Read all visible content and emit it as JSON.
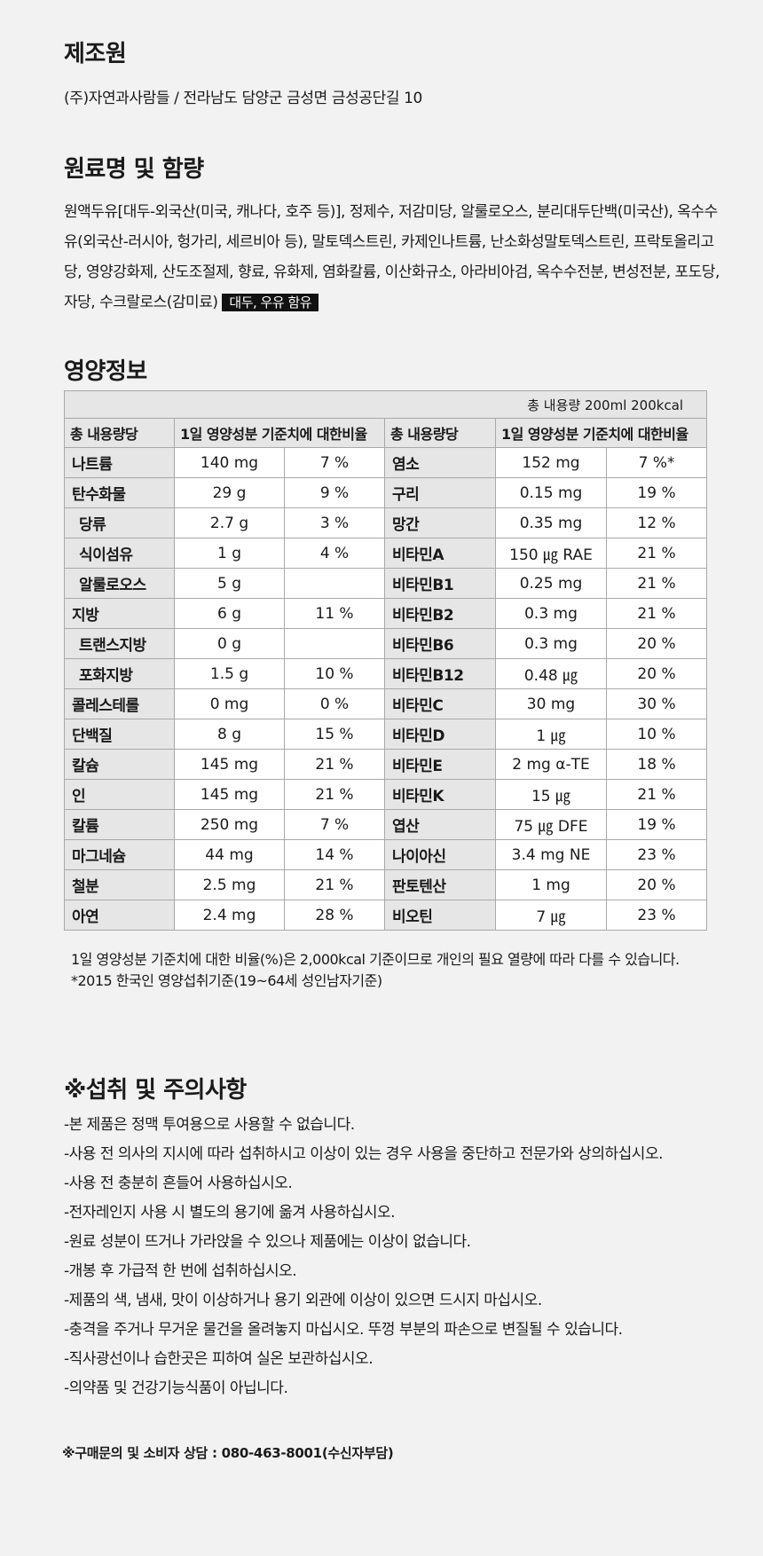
{
  "manufacturer": {
    "title": "제조원",
    "text": "(주)자연과사람들 / 전라남도 담양군 금성면 금성공단길 10"
  },
  "ingredients": {
    "title": "원료명 및 함량",
    "text": "원액두유[대두-외국산(미국, 캐나다, 호주 등)], 정제수, 저감미당, 알룰로오스, 분리대두단백(미국산), 옥수수유(외국산-러시아, 헝가리, 세르비아 등), 말토덱스트린, 카제인나트륨, 난소화성말토덱스트린, 프락토올리고당, 영양강화제, 산도조절제, 향료, 유화제, 염화칼륨, 이산화규소, 아라비아검, 옥수수전분, 변성전분, 포도당, 자당, 수크랄로스(감미료)",
    "allergen": "대두, 우유 함유"
  },
  "nutrition": {
    "title": "영양정보",
    "total": "총 내용량 200ml 200kcal",
    "header_amount": "총 내용량당",
    "header_ratio": "1일 영양성분 기준치에 대한비율",
    "left": [
      {
        "name": "나트륨",
        "value": "140 mg",
        "pct": "7 %"
      },
      {
        "name": "탄수화물",
        "value": "29 g",
        "pct": "9 %"
      },
      {
        "name": "당류",
        "value": "2.7 g",
        "pct": "3 %"
      },
      {
        "name": "식이섬유",
        "value": "1 g",
        "pct": "4 %"
      },
      {
        "name": "알룰로오스",
        "value": "5 g",
        "pct": ""
      },
      {
        "name": "지방",
        "value": "6 g",
        "pct": "11 %"
      },
      {
        "name": "트랜스지방",
        "value": "0 g",
        "pct": ""
      },
      {
        "name": "포화지방",
        "value": "1.5 g",
        "pct": "10 %"
      },
      {
        "name": "콜레스테롤",
        "value": "0 mg",
        "pct": "0 %"
      },
      {
        "name": "단백질",
        "value": "8 g",
        "pct": "15 %"
      },
      {
        "name": "칼슘",
        "value": "145 mg",
        "pct": "21 %"
      },
      {
        "name": "인",
        "value": "145 mg",
        "pct": "21 %"
      },
      {
        "name": "칼륨",
        "value": "250 mg",
        "pct": "7 %"
      },
      {
        "name": "마그네슘",
        "value": "44 mg",
        "pct": "14 %"
      },
      {
        "name": "철분",
        "value": "2.5 mg",
        "pct": "21 %"
      },
      {
        "name": "아연",
        "value": "2.4 mg",
        "pct": "28 %"
      }
    ],
    "right": [
      {
        "name": "염소",
        "value": "152 mg",
        "pct": "7 %*"
      },
      {
        "name": "구리",
        "value": "0.15 mg",
        "pct": "19 %"
      },
      {
        "name": "망간",
        "value": "0.35 mg",
        "pct": "12 %"
      },
      {
        "name": "비타민A",
        "value": "150 ㎍ RAE",
        "pct": "21 %"
      },
      {
        "name": "비타민B1",
        "value": "0.25 mg",
        "pct": "21 %"
      },
      {
        "name": "비타민B2",
        "value": "0.3 mg",
        "pct": "21 %"
      },
      {
        "name": "비타민B6",
        "value": "0.3 mg",
        "pct": "20 %"
      },
      {
        "name": "비타민B12",
        "value": "0.48 ㎍",
        "pct": "20 %"
      },
      {
        "name": "비타민C",
        "value": "30 mg",
        "pct": "30 %"
      },
      {
        "name": "비타민D",
        "value": "1 ㎍",
        "pct": "10 %"
      },
      {
        "name": "비타민E",
        "value": "2 mg α-TE",
        "pct": "18 %"
      },
      {
        "name": "비타민K",
        "value": "15 ㎍",
        "pct": "21 %"
      },
      {
        "name": "엽산",
        "value": "75 ㎍ DFE",
        "pct": "19 %"
      },
      {
        "name": "나이아신",
        "value": "3.4 mg NE",
        "pct": "23 %"
      },
      {
        "name": "판토텐산",
        "value": "1 mg",
        "pct": "20 %"
      },
      {
        "name": "비오틴",
        "value": "7 ㎍",
        "pct": "23 %"
      }
    ],
    "note1": "1일 영양성분 기준치에 대한 비율(%)은 2,000kcal 기준이므로 개인의 필요 열량에 따라 다를 수 있습니다.",
    "note2": "*2015 한국인 영양섭취기준(19~64세 성인남자기준)"
  },
  "notice": {
    "title": "※섭취 및 주의사항",
    "items": [
      "-본 제품은 정맥 투여용으로 사용할 수 없습니다.",
      "-사용 전 의사의 지시에 따라 섭취하시고 이상이 있는 경우 사용을 중단하고 전문가와 상의하십시오.",
      "-사용 전 충분히 흔들어 사용하십시오.",
      "-전자레인지 사용 시 별도의 용기에 옮겨 사용하십시오.",
      "-원료 성분이 뜨거나 가라앉을 수 있으나 제품에는 이상이 없습니다.",
      "-개봉 후 가급적 한 번에 섭취하십시오.",
      "-제품의 색, 냄새, 맛이 이상하거나 용기 외관에 이상이 있으면 드시지 마십시오.",
      "-충격을 주거나 무거운 물건을 올려놓지 마십시오. 뚜껑 부분의 파손으로 변질될 수 있습니다.",
      "-직사광선이나 습한곳은 피하여 실온 보관하십시오.",
      "-의약품 및 건강기능식품이 아닙니다."
    ]
  },
  "contact": "※구매문의 및 소비자 상담 : 080-463-8001(수신자부담)"
}
